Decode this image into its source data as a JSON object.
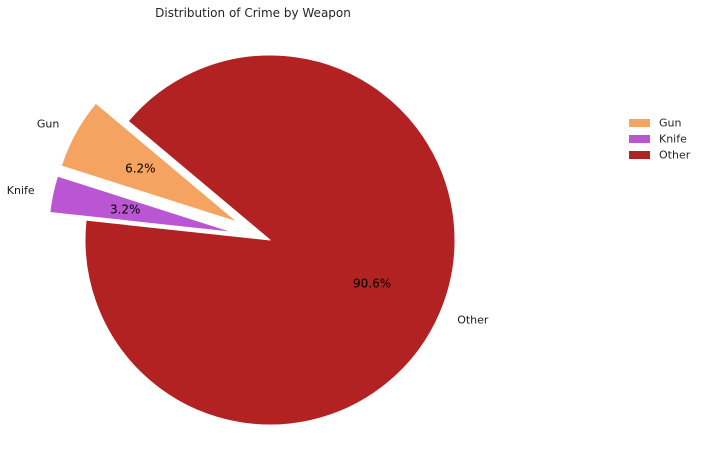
{
  "chart_data": {
    "type": "pie",
    "title": "Distribution of Crime by Weapon",
    "categories": [
      "Gun",
      "Knife",
      "Other"
    ],
    "values": [
      6.2,
      3.2,
      90.6
    ],
    "value_labels": [
      "6.2%",
      "3.2%",
      "90.6%"
    ],
    "colors": [
      "#f4a460",
      "#ba55d3",
      "#b22222"
    ],
    "exploded": [
      true,
      true,
      false
    ],
    "start_angle_deg": 140,
    "direction": "counterclockwise",
    "legend": {
      "placement": "right",
      "entries": [
        "Gun",
        "Knife",
        "Other"
      ]
    }
  }
}
